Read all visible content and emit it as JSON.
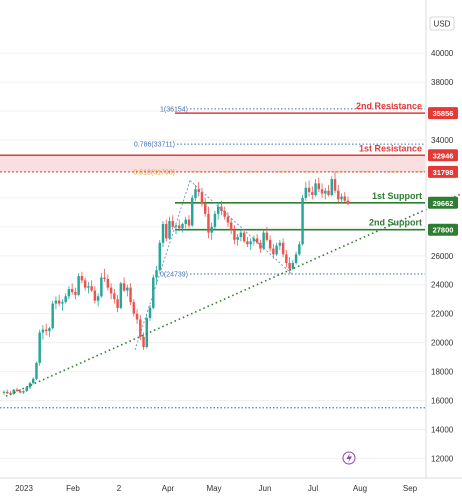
{
  "chart_data": {
    "type": "candlestick",
    "currency": "USD",
    "x_ticks": [
      "2023",
      "Feb",
      "2",
      "Apr",
      "May",
      "Jun",
      "Jul",
      "Aug",
      "Sep"
    ],
    "y_ticks": [
      12000,
      14000,
      16000,
      18000,
      20000,
      22000,
      24000,
      26000,
      28000,
      30000,
      32000,
      34000,
      36000,
      38000,
      40000
    ],
    "ylim": [
      11200,
      41600
    ],
    "resistance_zone": [
      31798,
      32946
    ],
    "levels": [
      {
        "price": 35856,
        "label": "2nd Resistance",
        "color": "#e53935",
        "tag": "35856",
        "style": "solid"
      },
      {
        "price": 32946,
        "label": "1st Resistance",
        "color": "#e53935",
        "tag": "32946",
        "style": "solid"
      },
      {
        "price": 31798,
        "label": "",
        "color": "#e53935",
        "tag": "31798",
        "style": "dotted"
      },
      {
        "price": 29662,
        "label": "1st Support",
        "color": "#2e7d32",
        "tag": "29662",
        "style": "solid"
      },
      {
        "price": 27800,
        "label": "2nd Support",
        "color": "#2e7d32",
        "tag": "27800",
        "style": "solid"
      }
    ],
    "fib_levels": [
      {
        "text": "1(36154)",
        "price": 36154,
        "color": "#3f6fb5"
      },
      {
        "text": "0.786(33711)",
        "price": 33711,
        "color": "#3f6fb5"
      },
      {
        "text": "0.618(31798)",
        "price": 31798,
        "color": "#f0a030"
      },
      {
        "text": "0(24739)",
        "price": 24739,
        "color": "#3f6fb5"
      }
    ],
    "lower_level": 15500,
    "trendline": {
      "start": [
        6,
        16300
      ],
      "end": [
        462,
        30300
      ]
    },
    "fib_ref": {
      "low": [
        135,
        19500
      ],
      "high": [
        190,
        31200
      ],
      "diag_end": [
        292,
        24739
      ]
    },
    "last_price": 29700,
    "candles": [
      [
        16550,
        16700,
        16400,
        16600
      ],
      [
        16600,
        16750,
        16450,
        16500
      ],
      [
        16500,
        16650,
        16350,
        16450
      ],
      [
        16450,
        16800,
        16400,
        16750
      ],
      [
        16750,
        16900,
        16600,
        16650
      ],
      [
        16650,
        16800,
        16500,
        16550
      ],
      [
        16550,
        16700,
        16450,
        16650
      ],
      [
        16650,
        17000,
        16600,
        16900
      ],
      [
        16900,
        17300,
        16800,
        17200
      ],
      [
        17200,
        17600,
        17100,
        17500
      ],
      [
        17500,
        18700,
        17400,
        18600
      ],
      [
        18600,
        20900,
        18400,
        20700
      ],
      [
        20700,
        21200,
        20200,
        20900
      ],
      [
        20900,
        21300,
        20500,
        20800
      ],
      [
        20800,
        21100,
        20400,
        21000
      ],
      [
        21000,
        22900,
        20900,
        22700
      ],
      [
        22700,
        23200,
        22300,
        22900
      ],
      [
        22900,
        23300,
        22500,
        22700
      ],
      [
        22700,
        23000,
        22200,
        22800
      ],
      [
        22800,
        23400,
        22700,
        23200
      ],
      [
        23200,
        23900,
        23000,
        23700
      ],
      [
        23700,
        24100,
        23300,
        23500
      ],
      [
        23500,
        23800,
        23000,
        23300
      ],
      [
        23300,
        24800,
        23200,
        24600
      ],
      [
        24600,
        24900,
        24100,
        24300
      ],
      [
        24300,
        24500,
        23600,
        23800
      ],
      [
        23800,
        24200,
        23400,
        23900
      ],
      [
        23900,
        24300,
        23500,
        23600
      ],
      [
        23600,
        23900,
        22700,
        22900
      ],
      [
        22900,
        23400,
        22500,
        23200
      ],
      [
        23200,
        24800,
        23100,
        24500
      ],
      [
        24500,
        25100,
        24200,
        24400
      ],
      [
        24400,
        24700,
        23600,
        23800
      ],
      [
        23800,
        24100,
        23000,
        23400
      ],
      [
        23400,
        23700,
        22700,
        23000
      ],
      [
        23000,
        23300,
        22100,
        22400
      ],
      [
        22400,
        24200,
        22300,
        24100
      ],
      [
        24100,
        24500,
        23500,
        23600
      ],
      [
        23600,
        24000,
        23200,
        23800
      ],
      [
        23800,
        24100,
        22600,
        22800
      ],
      [
        22800,
        23000,
        21800,
        22000
      ],
      [
        22000,
        22300,
        21300,
        21600
      ],
      [
        21600,
        21900,
        20200,
        20400
      ],
      [
        20400,
        20700,
        19500,
        19700
      ],
      [
        19700,
        21900,
        19600,
        21700
      ],
      [
        21700,
        22600,
        21500,
        22400
      ],
      [
        22400,
        24700,
        22300,
        24500
      ],
      [
        24500,
        25300,
        24100,
        25000
      ],
      [
        25000,
        27100,
        24900,
        26900
      ],
      [
        26900,
        28400,
        26600,
        28200
      ],
      [
        28200,
        28500,
        27000,
        27200
      ],
      [
        27200,
        28700,
        27100,
        28400
      ],
      [
        28400,
        28800,
        27800,
        28000
      ],
      [
        28000,
        28300,
        27500,
        28100
      ],
      [
        28100,
        28500,
        27700,
        27900
      ],
      [
        27900,
        28300,
        27600,
        28200
      ],
      [
        28200,
        28700,
        27900,
        28500
      ],
      [
        28500,
        28800,
        27900,
        28100
      ],
      [
        28100,
        30200,
        28000,
        30000
      ],
      [
        30000,
        30900,
        29800,
        30600
      ],
      [
        30600,
        31100,
        30100,
        30400
      ],
      [
        30400,
        30700,
        29400,
        29600
      ],
      [
        29600,
        30000,
        28700,
        28900
      ],
      [
        28900,
        29400,
        27200,
        27600
      ],
      [
        27600,
        28300,
        27100,
        28000
      ],
      [
        28000,
        29100,
        27800,
        28900
      ],
      [
        28900,
        29700,
        28500,
        29400
      ],
      [
        29400,
        29800,
        28800,
        29100
      ],
      [
        29100,
        29400,
        28500,
        28700
      ],
      [
        28700,
        29000,
        28000,
        28300
      ],
      [
        28300,
        28600,
        27500,
        27800
      ],
      [
        27800,
        28100,
        26800,
        27100
      ],
      [
        27100,
        27500,
        26700,
        27300
      ],
      [
        27300,
        27800,
        27000,
        27600
      ],
      [
        27600,
        27800,
        26900,
        27000
      ],
      [
        27000,
        27300,
        26600,
        26800
      ],
      [
        26800,
        27200,
        26400,
        27000
      ],
      [
        27000,
        27400,
        26700,
        27200
      ],
      [
        27200,
        27500,
        26800,
        26900
      ],
      [
        26900,
        27100,
        26200,
        26500
      ],
      [
        26500,
        27800,
        26400,
        27600
      ],
      [
        27600,
        28000,
        27000,
        27100
      ],
      [
        27100,
        27400,
        26300,
        26500
      ],
      [
        26500,
        26800,
        25800,
        26100
      ],
      [
        26100,
        26900,
        26000,
        26700
      ],
      [
        26700,
        27100,
        26400,
        26900
      ],
      [
        26900,
        27200,
        25900,
        26100
      ],
      [
        26100,
        26400,
        25200,
        25500
      ],
      [
        25500,
        25900,
        24800,
        25100
      ],
      [
        25100,
        25700,
        25000,
        25500
      ],
      [
        25500,
        26300,
        25400,
        26100
      ],
      [
        26100,
        27000,
        26000,
        26800
      ],
      [
        26800,
        30200,
        26700,
        30000
      ],
      [
        30000,
        31100,
        29800,
        30700
      ],
      [
        30700,
        31200,
        30100,
        30400
      ],
      [
        30400,
        30800,
        29900,
        30200
      ],
      [
        30200,
        31300,
        30100,
        31000
      ],
      [
        31000,
        31400,
        30400,
        30600
      ],
      [
        30600,
        31000,
        30000,
        30300
      ],
      [
        30300,
        30700,
        29900,
        30500
      ],
      [
        30500,
        30900,
        30100,
        30200
      ],
      [
        30200,
        31500,
        30100,
        31300
      ],
      [
        31300,
        31800,
        30300,
        30500
      ],
      [
        30500,
        30900,
        29700,
        29900
      ],
      [
        29900,
        30300,
        29600,
        30100
      ],
      [
        30100,
        30400,
        29700,
        29800
      ],
      [
        29800,
        30100,
        29500,
        29700
      ]
    ]
  }
}
